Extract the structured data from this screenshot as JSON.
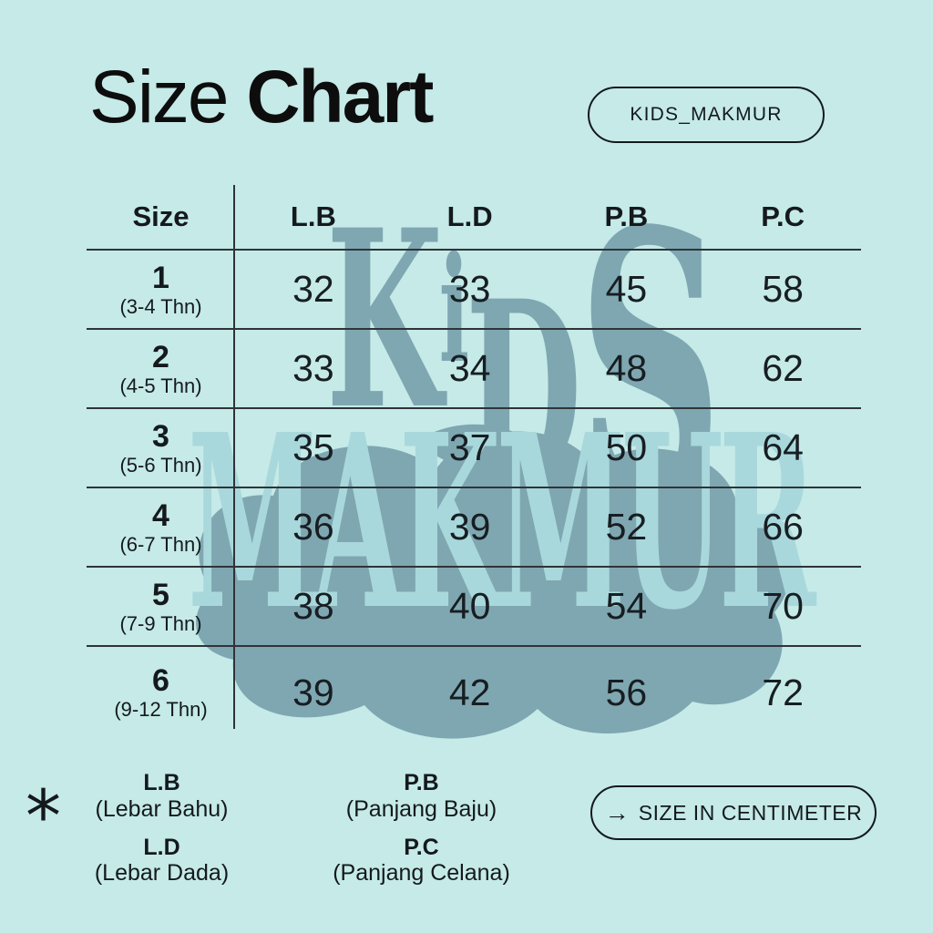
{
  "page": {
    "background_color": "#c5eae8",
    "ink_color": "#14191d",
    "line_color": "#2e3438",
    "watermark_dark_color": "#7fa7b1",
    "watermark_light_color": "#a9d8dc"
  },
  "header": {
    "title_regular": "Size",
    "title_bold": "Chart",
    "brand_badge": "KIDS_MAKMUR"
  },
  "watermark": {
    "word_top": "KiDS",
    "word_bottom": "MAKMUR"
  },
  "table": {
    "columns": [
      "Size",
      "L.B",
      "L.D",
      "P.B",
      "P.C"
    ],
    "rows": [
      {
        "size": "1",
        "age": "(3-4 Thn)",
        "values": [
          "32",
          "33",
          "45",
          "58"
        ]
      },
      {
        "size": "2",
        "age": "(4-5 Thn)",
        "values": [
          "33",
          "34",
          "48",
          "62"
        ]
      },
      {
        "size": "3",
        "age": "(5-6 Thn)",
        "values": [
          "35",
          "37",
          "50",
          "64"
        ]
      },
      {
        "size": "4",
        "age": "(6-7 Thn)",
        "values": [
          "36",
          "39",
          "52",
          "66"
        ]
      },
      {
        "size": "5",
        "age": "(7-9 Thn)",
        "values": [
          "38",
          "40",
          "54",
          "70"
        ]
      },
      {
        "size": "6",
        "age": "(9-12 Thn)",
        "values": [
          "39",
          "42",
          "56",
          "72"
        ]
      }
    ]
  },
  "legend": {
    "marker": "*",
    "items": [
      {
        "abbr": "L.B",
        "full": "(Lebar Bahu)"
      },
      {
        "abbr": "L.D",
        "full": "(Lebar Dada)"
      },
      {
        "abbr": "P.B",
        "full": "(Panjang Baju)"
      },
      {
        "abbr": "P.C",
        "full": "(Panjang Celana)"
      }
    ]
  },
  "footer": {
    "note_arrow": "→",
    "note_text": "SIZE IN CENTIMETER"
  },
  "chart_data": {
    "type": "table",
    "title": "Size Chart",
    "units": "centimeter",
    "columns": [
      "Size",
      "L.B (Lebar Bahu)",
      "L.D (Lebar Dada)",
      "P.B (Panjang Baju)",
      "P.C (Panjang Celana)"
    ],
    "rows": [
      [
        "1 (3-4 Thn)",
        32,
        33,
        45,
        58
      ],
      [
        "2 (4-5 Thn)",
        33,
        34,
        48,
        62
      ],
      [
        "3 (5-6 Thn)",
        35,
        37,
        50,
        64
      ],
      [
        "4 (6-7 Thn)",
        36,
        39,
        52,
        66
      ],
      [
        "5 (7-9 Thn)",
        38,
        40,
        54,
        70
      ],
      [
        "6 (9-12 Thn)",
        39,
        42,
        56,
        72
      ]
    ]
  }
}
